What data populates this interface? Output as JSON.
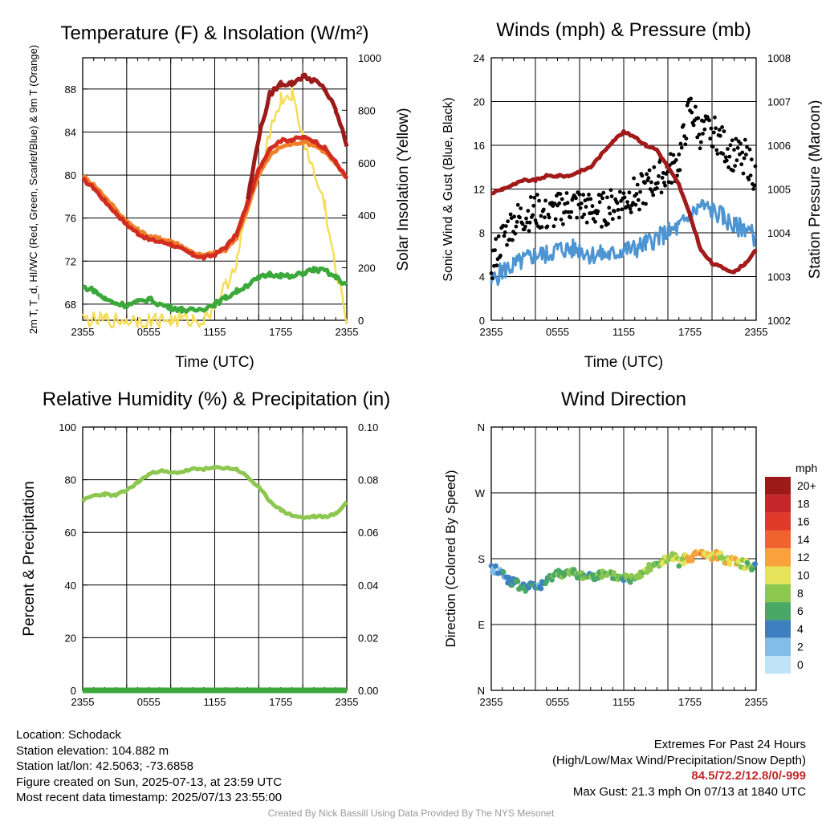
{
  "colors": {
    "temp": "#d22b1f",
    "dewpoint": "#3aa83a",
    "heat_index": "#9b1a1a",
    "temp9m": "#f07f2a",
    "solar": "#f5dd5a",
    "wind": "#4d95d2",
    "gust": "#000000",
    "pressure": "#a21a1a",
    "rh": "#8cc74f",
    "precip": "#3aa83a"
  },
  "wind_speed_legend": {
    "title": "mph",
    "labels": [
      "20+",
      "18",
      "16",
      "14",
      "12",
      "10",
      "8",
      "6",
      "4",
      "2",
      "0"
    ],
    "colors": [
      "#9b1a1a",
      "#c4262a",
      "#e03a2b",
      "#f0632e",
      "#f9a23d",
      "#e6e35a",
      "#8cc74f",
      "#4aa867",
      "#3c80c0",
      "#82bce8",
      "#bfe4f7"
    ]
  },
  "chart_data": [
    {
      "type": "line",
      "title": "Temperature (F) & Insolation (W/m²)",
      "xlabel": "Time (UTC)",
      "ylabel": "2m T, T_d, HI/WC (Red, Green, Scarlet/Blue) & 9m T (Orange)",
      "y2label": "Solar Insolation (Yellow)",
      "xticks": [
        "2355",
        "0555",
        "1155",
        "1755",
        "2355"
      ],
      "ylim": [
        66.5,
        90.9
      ],
      "yticks": [
        68,
        72,
        76,
        80,
        84,
        88
      ],
      "y2lim": [
        0,
        1000
      ],
      "y2ticks": [
        0,
        200,
        400,
        600,
        800,
        1000
      ],
      "grid": true,
      "x": [
        0,
        1,
        2,
        3,
        4,
        5,
        6,
        7,
        8,
        9,
        10,
        11,
        12,
        13,
        14,
        15,
        16,
        17,
        18,
        19,
        20,
        21,
        22,
        23,
        24
      ],
      "series": [
        {
          "name": "2m T",
          "axis": "left",
          "values": [
            79.6,
            78.8,
            77.6,
            76.5,
            75.4,
            74.6,
            74.0,
            73.8,
            73.6,
            73.1,
            72.6,
            72.3,
            72.6,
            73.3,
            74.5,
            77.5,
            80.5,
            82.5,
            83.2,
            83.3,
            83.5,
            83.2,
            82.5,
            81.2,
            79.7
          ]
        },
        {
          "name": "9m T",
          "axis": "left",
          "values": [
            79.9,
            79.1,
            78.0,
            76.8,
            75.7,
            74.9,
            74.3,
            74.1,
            73.9,
            73.4,
            72.8,
            72.5,
            72.8,
            73.0,
            74.2,
            77.0,
            80.0,
            81.8,
            82.6,
            82.9,
            83.1,
            82.8,
            82.2,
            81.0,
            79.7
          ]
        },
        {
          "name": "Heat index",
          "axis": "left",
          "values": [
            null,
            null,
            null,
            null,
            null,
            null,
            null,
            null,
            null,
            null,
            null,
            null,
            null,
            null,
            null,
            77.8,
            83.5,
            87.5,
            88.5,
            88.5,
            89.2,
            88.8,
            88.0,
            86.0,
            82.8
          ]
        },
        {
          "name": "Dewpoint",
          "axis": "left",
          "values": [
            69.6,
            69.3,
            68.5,
            68.1,
            67.9,
            68.2,
            68.5,
            68.0,
            67.7,
            67.5,
            67.4,
            67.6,
            68.0,
            68.6,
            69.2,
            69.8,
            70.4,
            70.8,
            70.7,
            70.5,
            70.9,
            71.2,
            71.1,
            70.5,
            69.8
          ]
        },
        {
          "name": "Solar insolation",
          "axis": "right",
          "values": [
            5,
            1,
            1,
            1,
            1,
            1,
            1,
            1,
            1,
            1,
            1,
            2,
            60,
            130,
            230,
            420,
            560,
            720,
            840,
            860,
            700,
            560,
            440,
            180,
            10
          ]
        }
      ]
    },
    {
      "type": "line",
      "title": "Winds (mph) & Pressure (mb)",
      "xlabel": "Time (UTC)",
      "ylabel": "Sonic Wind & Gust (Blue, Black)",
      "y2label": "Station Pressure (Maroon)",
      "xticks": [
        "2355",
        "0555",
        "1155",
        "1755",
        "2355"
      ],
      "ylim": [
        0,
        24
      ],
      "yticks": [
        0,
        4,
        8,
        12,
        16,
        20,
        24
      ],
      "y2lim": [
        1002,
        1008
      ],
      "y2ticks": [
        1002,
        1003,
        1004,
        1005,
        1006,
        1007,
        1008
      ],
      "grid": true,
      "x": [
        0,
        1,
        2,
        3,
        4,
        5,
        6,
        7,
        8,
        9,
        10,
        11,
        12,
        13,
        14,
        15,
        16,
        17,
        18,
        19,
        20,
        21,
        22,
        23,
        24
      ],
      "series": [
        {
          "name": "Sonic wind",
          "axis": "left",
          "values": [
            3.5,
            4.5,
            5.0,
            5.5,
            6.0,
            6.0,
            6.5,
            6.5,
            6.5,
            6.0,
            6.0,
            6.0,
            6.5,
            6.5,
            7.0,
            7.5,
            8.0,
            8.5,
            9.5,
            10.5,
            10.0,
            9.5,
            8.5,
            8.5,
            7.5
          ]
        },
        {
          "name": "Gust",
          "axis": "left",
          "values": [
            5.0,
            7.5,
            9.0,
            9.5,
            10.0,
            9.5,
            10.0,
            10.5,
            10.5,
            10.0,
            10.0,
            10.5,
            11.0,
            11.5,
            12.0,
            13.0,
            13.5,
            14.5,
            19.5,
            17.0,
            17.5,
            16.0,
            15.0,
            15.0,
            13.0
          ]
        },
        {
          "name": "Station pressure",
          "axis": "right",
          "values": [
            1004.9,
            1005.0,
            1005.1,
            1005.2,
            1005.2,
            1005.3,
            1005.3,
            1005.3,
            1005.4,
            1005.5,
            1005.8,
            1006.1,
            1006.3,
            1006.2,
            1006.0,
            1005.9,
            1005.5,
            1005.1,
            1004.4,
            1003.6,
            1003.3,
            1003.2,
            1003.1,
            1003.3,
            1003.6
          ]
        }
      ],
      "max_gust": 21.3
    },
    {
      "type": "line",
      "title": "Relative Humidity (%) & Precipitation (in)",
      "xlabel": "",
      "ylabel": "Percent & Precipitation",
      "xticks": [
        "2355",
        "0555",
        "1155",
        "1755",
        "2355"
      ],
      "ylim": [
        0,
        100
      ],
      "yticks": [
        0,
        20,
        40,
        60,
        80,
        100
      ],
      "y2lim": [
        0,
        0.1
      ],
      "y2ticks": [
        "0.00",
        "0.02",
        "0.04",
        "0.06",
        "0.08",
        "0.10"
      ],
      "grid": true,
      "x": [
        0,
        1,
        2,
        3,
        4,
        5,
        6,
        7,
        8,
        9,
        10,
        11,
        12,
        13,
        14,
        15,
        16,
        17,
        18,
        19,
        20,
        21,
        22,
        23,
        24
      ],
      "series": [
        {
          "name": "Relative humidity",
          "axis": "left",
          "values": [
            72,
            74,
            74.5,
            74,
            76,
            79,
            82,
            83.5,
            82.5,
            83,
            84,
            84,
            84.5,
            84.5,
            84,
            81,
            77,
            72,
            68.5,
            66.5,
            65.5,
            66,
            66,
            67,
            71.5
          ]
        },
        {
          "name": "Precipitation",
          "axis": "right",
          "values": [
            0,
            0,
            0,
            0,
            0,
            0,
            0,
            0,
            0,
            0,
            0,
            0,
            0,
            0,
            0,
            0,
            0,
            0,
            0,
            0,
            0,
            0,
            0,
            0,
            0
          ]
        }
      ]
    },
    {
      "type": "scatter",
      "title": "Wind Direction",
      "xlabel": "",
      "ylabel": "Direction (Colored By Speed)",
      "xticks": [
        "2355",
        "0555",
        "1155",
        "1755",
        "2355"
      ],
      "yticks": [
        "N",
        "E",
        "S",
        "W",
        "N"
      ],
      "ylim": [
        0,
        360
      ],
      "grid": true,
      "x": [
        0,
        0.5,
        1,
        1.5,
        2,
        2.5,
        3,
        3.5,
        4,
        4.5,
        5,
        5.5,
        6,
        6.5,
        7,
        7.5,
        8,
        8.5,
        9,
        9.5,
        10,
        10.5,
        11,
        11.5,
        12,
        12.5,
        13,
        13.5,
        14,
        14.5,
        15,
        15.5,
        16,
        16.5,
        17,
        17.5,
        18,
        18.5,
        19,
        19.5,
        20,
        20.5,
        21,
        21.5,
        22,
        22.5,
        23,
        23.5,
        24
      ],
      "direction": [
        166,
        165,
        160,
        152,
        148,
        143,
        140,
        142,
        142,
        143,
        147,
        157,
        160,
        161,
        159,
        160,
        157,
        157,
        156,
        158,
        158,
        156,
        157,
        154,
        155,
        151,
        157,
        160,
        165,
        172,
        170,
        177,
        178,
        182,
        175,
        180,
        178,
        185,
        188,
        184,
        183,
        184,
        182,
        177,
        180,
        175,
        172,
        170,
        174
      ],
      "speed_mph": [
        2,
        3,
        4,
        4,
        5,
        6,
        6,
        5,
        4,
        4,
        5,
        6,
        6,
        7,
        7,
        6,
        7,
        7,
        6,
        6,
        7,
        6,
        7,
        7,
        6,
        7,
        7,
        8,
        8,
        8,
        7,
        9,
        8,
        9,
        8,
        10,
        12,
        11,
        12,
        10,
        10,
        10,
        9,
        10,
        11,
        9,
        8,
        8,
        6
      ]
    }
  ],
  "footer": {
    "location": "Location: Schodack",
    "elevation": "Station elevation: 104.882 m",
    "latlon": "Station lat/lon: 42.5063; -73.6858",
    "created": "Figure created on Sun, 2025-07-13, at 23:59 UTC",
    "recent": "Most recent data timestamp: 2025/07/13 23:55:00",
    "extremes_title": "Extremes For Past 24 Hours",
    "extremes_legend": "(High/Low/Max Wind/Precipitation/Snow Depth)",
    "extremes_values": "84.5/72.2/12.8/0/-999",
    "max_gust": "Max Gust: 21.3 mph On 07/13 at 1840 UTC",
    "credit": "Created By Nick Bassill Using Data Provided By The NYS Mesonet"
  }
}
